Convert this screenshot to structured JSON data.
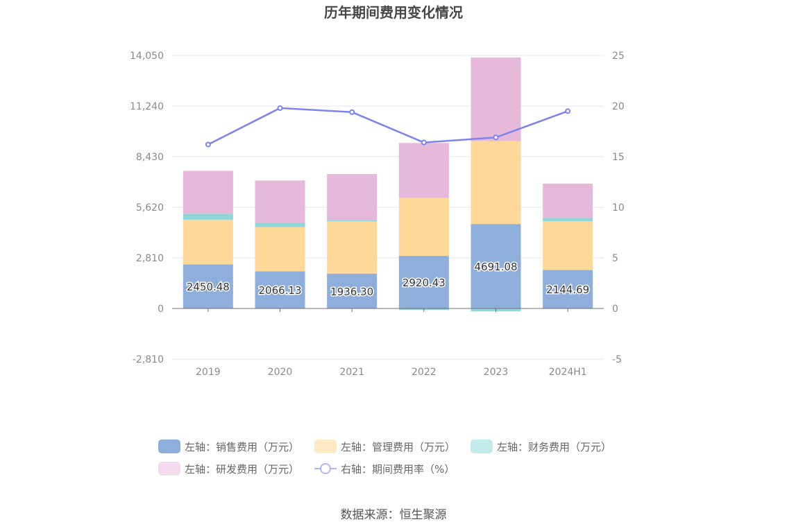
{
  "chart_data": {
    "type": "bar",
    "title": "历年期间费用变化情况",
    "categories": [
      "2019",
      "2020",
      "2021",
      "2022",
      "2023",
      "2024H1"
    ],
    "left_axis": {
      "ticks": [
        "-2,810",
        "0",
        "2,810",
        "5,620",
        "8,430",
        "11,240",
        "14,050"
      ],
      "min": -2810,
      "max": 14050
    },
    "right_axis": {
      "ticks": [
        "-5",
        "0",
        "5",
        "10",
        "15",
        "20",
        "25"
      ],
      "min": -5,
      "max": 25
    },
    "series": [
      {
        "name": "左轴：销售费用（万元）",
        "axis": "left",
        "stack": "cost",
        "color": "#8eaedb",
        "values": [
          2450.48,
          2066.13,
          1936.3,
          2920.43,
          4691.08,
          2144.69
        ],
        "labels": [
          "2450.48",
          "2066.13",
          "1936.30",
          "2920.43",
          "4691.08",
          "2144.69"
        ]
      },
      {
        "name": "左轴：管理费用（万元）",
        "axis": "left",
        "stack": "cost",
        "color": "#fed899",
        "values": [
          2480,
          2450,
          2900,
          3220,
          4600,
          2700
        ]
      },
      {
        "name": "左轴：财务费用（万元）",
        "axis": "left",
        "stack": "cost",
        "color": "#8ed6d8",
        "values": [
          330,
          240,
          80,
          -80,
          -150,
          180
        ]
      },
      {
        "name": "左轴：研发费用（万元）",
        "axis": "left",
        "stack": "cost",
        "color": "#e6b8d9",
        "values": [
          2380,
          2350,
          2550,
          3050,
          4650,
          1910
        ]
      },
      {
        "name": "右轴：期间费用率（%）",
        "axis": "right",
        "type": "line",
        "color": "#7b84ee",
        "values": [
          16.2,
          19.8,
          19.4,
          16.4,
          16.9,
          19.5
        ]
      }
    ]
  },
  "legend": {
    "items": [
      {
        "label": "左轴：销售费用（万元）",
        "color": "#8eaedb"
      },
      {
        "label": "左轴：管理费用（万元）",
        "color": "#ffe8c4"
      },
      {
        "label": "左轴：财务费用（万元）",
        "color": "#c2ebec"
      },
      {
        "label": "左轴：研发费用（万元）",
        "color": "#f4dcee"
      },
      {
        "label": "右轴：期间费用率（%）",
        "color": "#b1b6f7"
      }
    ]
  },
  "source": "数据来源：恒生聚源"
}
